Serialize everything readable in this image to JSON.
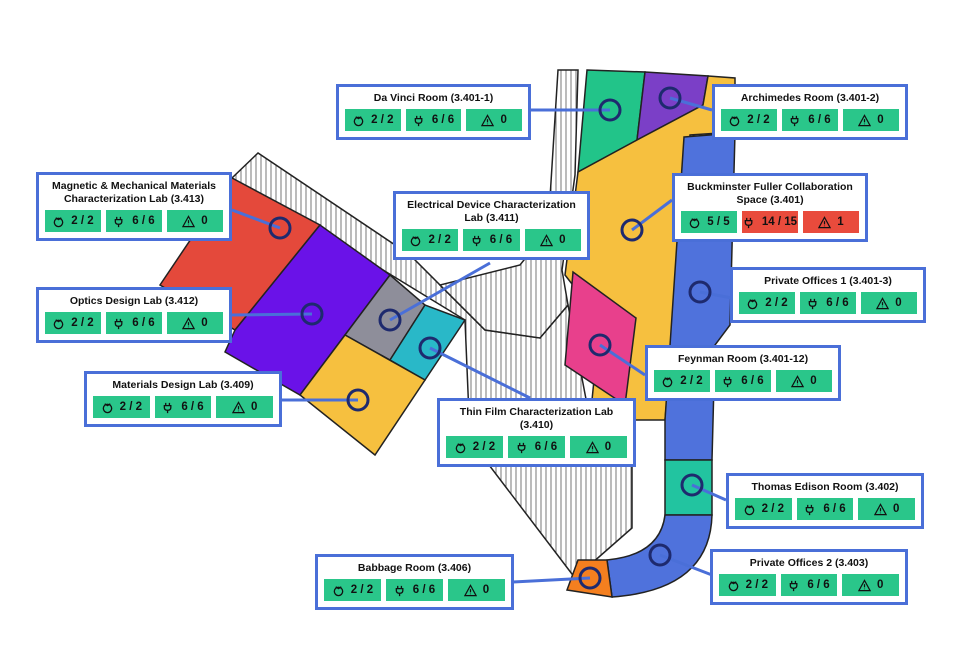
{
  "rooms": {
    "davinci": {
      "title": "Da Vinci Room (3.401-1)",
      "devices": "2 / 2",
      "plugs": "6 / 6",
      "alerts": "0",
      "color": "#22c489"
    },
    "archimedes": {
      "title": "Archimedes Room (3.401-2)",
      "devices": "2 / 2",
      "plugs": "6 / 6",
      "alerts": "0",
      "color": "#7b3fc7"
    },
    "buckminster": {
      "title": "Buckminster Fuller Collaboration\nSpace (3.401)",
      "devices": "5 / 5",
      "plugs": "14 / 15",
      "alerts": "1",
      "color": "#f6c03f"
    },
    "private1": {
      "title": "Private Offices 1 (3.401-3)",
      "devices": "2 / 2",
      "plugs": "6 / 6",
      "alerts": "0",
      "color": "#4f72dc"
    },
    "feynman": {
      "title": "Feynman Room (3.401-12)",
      "devices": "2 / 2",
      "plugs": "6 / 6",
      "alerts": "0",
      "color": "#e8408c"
    },
    "edison": {
      "title": "Thomas Edison Room (3.402)",
      "devices": "2 / 2",
      "plugs": "6 / 6",
      "alerts": "0",
      "color": "#22c4a0"
    },
    "private2": {
      "title": "Private Offices 2 (3.403)",
      "devices": "2 / 2",
      "plugs": "6 / 6",
      "alerts": "0",
      "color": "#4f72dc"
    },
    "babbage": {
      "title": "Babbage Room (3.406)",
      "devices": "2 / 2",
      "plugs": "6 / 6",
      "alerts": "0",
      "color": "#f47f1f"
    },
    "thinfilm": {
      "title": "Thin Film Characterization Lab\n(3.410)",
      "devices": "2 / 2",
      "plugs": "6 / 6",
      "alerts": "0",
      "color": "#29b8c8"
    },
    "electrical": {
      "title": "Electrical Device Characterization\nLab (3.411)",
      "devices": "2 / 2",
      "plugs": "6 / 6",
      "alerts": "0",
      "color": "#8e8e9a"
    },
    "magnetic": {
      "title": "Magnetic & Mechanical Materials\nCharacterization Lab (3.413)",
      "devices": "2 / 2",
      "plugs": "6 / 6",
      "alerts": "0",
      "color": "#e4493b"
    },
    "optics": {
      "title": "Optics Design Lab (3.412)",
      "devices": "2 / 2",
      "plugs": "6 / 6",
      "alerts": "0",
      "color": "#6a12e8"
    },
    "materials": {
      "title": "Materials Design Lab (3.409)",
      "devices": "2 / 2",
      "plugs": "6 / 6",
      "alerts": "0",
      "color": "#f6c03f"
    }
  },
  "icons": {
    "devices": "raspberry-pi-icon",
    "plugs": "plug-icon",
    "alerts": "warning-icon"
  },
  "colors": {
    "ok": "#2ac68a",
    "alert": "#e94b3c",
    "border": "#4a6fd8"
  }
}
